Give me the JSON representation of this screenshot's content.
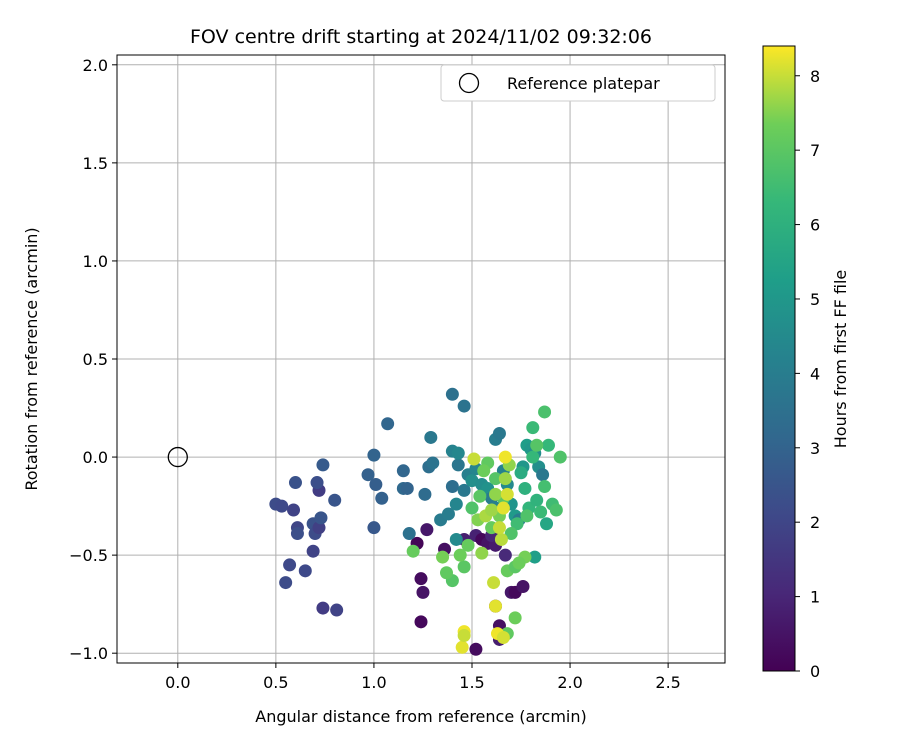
{
  "chart_data": {
    "type": "scatter",
    "title": "FOV centre drift starting at 2024/11/02 09:32:06",
    "xlabel": "Angular distance from reference (arcmin)",
    "ylabel": "Rotation from reference (arcmin)",
    "xlim": [
      -0.31,
      2.79
    ],
    "ylim": [
      -1.05,
      2.05
    ],
    "x_ticks": [
      0.0,
      0.5,
      1.0,
      1.5,
      2.0,
      2.5
    ],
    "x_tick_labels": [
      "0.0",
      "0.5",
      "1.0",
      "1.5",
      "2.0",
      "2.5"
    ],
    "y_ticks": [
      -1.0,
      -0.5,
      0.0,
      0.5,
      1.0,
      1.5,
      2.0
    ],
    "y_tick_labels": [
      "−1.0",
      "−0.5",
      "0.0",
      "0.5",
      "1.0",
      "1.5",
      "2.0"
    ],
    "grid": true,
    "legend": {
      "placement": "upper-right",
      "entries": [
        "Reference platepar"
      ]
    },
    "reference_point": {
      "x": 0.0,
      "y": 0.0,
      "label": "Reference platepar"
    },
    "colorbar": {
      "label": "Hours from first FF file",
      "colormap": "viridis",
      "range": [
        0,
        8.4
      ],
      "ticks": [
        0,
        1,
        2,
        3,
        4,
        5,
        6,
        7,
        8
      ],
      "tick_labels": [
        "0",
        "1",
        "2",
        "3",
        "4",
        "5",
        "6",
        "7",
        "8"
      ]
    },
    "points": [
      [
        1.22,
        -0.44,
        0.1
      ],
      [
        1.24,
        -0.62,
        0.3
      ],
      [
        1.25,
        -0.69,
        0.5
      ],
      [
        1.24,
        -0.84,
        0.2
      ],
      [
        1.27,
        -0.37,
        0.6
      ],
      [
        1.36,
        -0.47,
        0.4
      ],
      [
        1.46,
        -0.42,
        0.8
      ],
      [
        1.52,
        -0.4,
        0.9
      ],
      [
        1.55,
        -0.42,
        0.2
      ],
      [
        1.58,
        -0.44,
        0.5
      ],
      [
        1.62,
        -0.45,
        0.7
      ],
      [
        1.52,
        -0.98,
        0.3
      ],
      [
        1.62,
        -0.76,
        0.9
      ],
      [
        1.64,
        -0.86,
        0.4
      ],
      [
        1.7,
        -0.69,
        0.6
      ],
      [
        1.72,
        -0.69,
        0.2
      ],
      [
        1.76,
        -0.66,
        0.5
      ],
      [
        1.6,
        -0.4,
        1.0
      ],
      [
        1.64,
        -0.93,
        0.8
      ],
      [
        1.67,
        -0.5,
        1.1
      ],
      [
        0.5,
        -0.24,
        2.2
      ],
      [
        0.53,
        -0.25,
        2.1
      ],
      [
        0.59,
        -0.27,
        1.9
      ],
      [
        0.61,
        -0.36,
        2.0
      ],
      [
        0.61,
        -0.39,
        2.3
      ],
      [
        0.57,
        -0.55,
        2.1
      ],
      [
        0.55,
        -0.64,
        2.2
      ],
      [
        0.65,
        -0.58,
        2.1
      ],
      [
        0.69,
        -0.48,
        1.9
      ],
      [
        0.69,
        -0.34,
        2.4
      ],
      [
        0.7,
        -0.39,
        2.2
      ],
      [
        0.72,
        -0.36,
        1.8
      ],
      [
        0.73,
        -0.31,
        2.5
      ],
      [
        0.72,
        -0.17,
        1.7
      ],
      [
        0.71,
        -0.13,
        2.3
      ],
      [
        0.74,
        -0.04,
        2.7
      ],
      [
        0.8,
        -0.22,
        2.5
      ],
      [
        0.74,
        -0.77,
        1.7
      ],
      [
        0.81,
        -0.78,
        1.9
      ],
      [
        0.6,
        -0.13,
        2.4
      ],
      [
        0.97,
        -0.09,
        2.9
      ],
      [
        1.0,
        0.01,
        3.0
      ],
      [
        1.01,
        -0.14,
        2.8
      ],
      [
        1.04,
        -0.21,
        2.9
      ],
      [
        1.0,
        -0.36,
        2.6
      ],
      [
        1.07,
        0.17,
        3.1
      ],
      [
        1.15,
        -0.07,
        3.1
      ],
      [
        1.15,
        -0.16,
        3.2
      ],
      [
        1.17,
        -0.16,
        3.0
      ],
      [
        1.26,
        -0.19,
        3.3
      ],
      [
        1.18,
        -0.39,
        3.5
      ],
      [
        1.28,
        -0.05,
        3.4
      ],
      [
        1.3,
        -0.03,
        3.6
      ],
      [
        1.29,
        0.1,
        3.8
      ],
      [
        1.4,
        0.32,
        3.5
      ],
      [
        1.46,
        0.26,
        3.6
      ],
      [
        1.4,
        -0.15,
        3.4
      ],
      [
        1.43,
        -0.04,
        3.7
      ],
      [
        1.4,
        0.03,
        4.2
      ],
      [
        1.43,
        0.02,
        4.4
      ],
      [
        1.34,
        -0.32,
        3.9
      ],
      [
        1.38,
        -0.29,
        4.0
      ],
      [
        1.42,
        -0.24,
        4.3
      ],
      [
        1.42,
        -0.42,
        4.5
      ],
      [
        1.46,
        -0.17,
        3.8
      ],
      [
        1.48,
        -0.09,
        4.1
      ],
      [
        1.5,
        -0.12,
        4.7
      ],
      [
        1.52,
        -0.06,
        4.3
      ],
      [
        1.55,
        -0.14,
        4.6
      ],
      [
        1.58,
        -0.16,
        4.8
      ],
      [
        1.6,
        -0.21,
        3.9
      ],
      [
        1.62,
        -0.26,
        4.1
      ],
      [
        1.62,
        0.09,
        4.0
      ],
      [
        1.64,
        0.12,
        3.8
      ],
      [
        1.66,
        -0.07,
        4.2
      ],
      [
        1.68,
        -0.14,
        4.5
      ],
      [
        1.7,
        -0.24,
        4.9
      ],
      [
        1.72,
        -0.3,
        5.1
      ],
      [
        1.74,
        -0.32,
        3.9
      ],
      [
        1.76,
        -0.05,
        5.0
      ],
      [
        1.78,
        0.06,
        5.2
      ],
      [
        1.8,
        0.04,
        5.0
      ],
      [
        1.82,
        0.02,
        4.6
      ],
      [
        1.84,
        -0.05,
        4.7
      ],
      [
        1.86,
        -0.09,
        3.8
      ],
      [
        1.82,
        -0.51,
        5.3
      ],
      [
        1.88,
        -0.34,
        5.6
      ],
      [
        1.75,
        -0.08,
        5.8
      ],
      [
        1.77,
        -0.16,
        6.0
      ],
      [
        1.79,
        -0.26,
        6.2
      ],
      [
        1.81,
        0.0,
        6.3
      ],
      [
        1.83,
        -0.22,
        6.1
      ],
      [
        1.85,
        -0.28,
        6.4
      ],
      [
        1.87,
        -0.15,
        6.6
      ],
      [
        1.89,
        0.06,
        6.3
      ],
      [
        1.91,
        -0.24,
        6.5
      ],
      [
        1.93,
        -0.27,
        6.7
      ],
      [
        1.95,
        0.0,
        6.8
      ],
      [
        1.87,
        0.23,
        6.7
      ],
      [
        1.81,
        0.15,
        6.4
      ],
      [
        1.83,
        0.06,
        6.9
      ],
      [
        1.78,
        -0.3,
        6.8
      ],
      [
        1.73,
        -0.34,
        6.5
      ],
      [
        1.7,
        -0.39,
        6.8
      ],
      [
        1.68,
        -0.58,
        7.2
      ],
      [
        1.72,
        -0.56,
        7.0
      ],
      [
        1.72,
        -0.82,
        7.3
      ],
      [
        1.68,
        -0.9,
        7.1
      ],
      [
        1.66,
        -0.21,
        7.0
      ],
      [
        1.64,
        -0.3,
        7.4
      ],
      [
        1.6,
        -0.36,
        7.2
      ],
      [
        1.62,
        -0.11,
        6.9
      ],
      [
        1.58,
        -0.03,
        7.1
      ],
      [
        1.56,
        -0.07,
        7.3
      ],
      [
        1.54,
        -0.2,
        7.0
      ],
      [
        1.5,
        -0.26,
        6.8
      ],
      [
        1.48,
        -0.45,
        7.2
      ],
      [
        1.46,
        -0.56,
        7.0
      ],
      [
        1.44,
        -0.5,
        7.3
      ],
      [
        1.4,
        -0.63,
        6.9
      ],
      [
        1.37,
        -0.59,
        7.1
      ],
      [
        1.35,
        -0.51,
        7.4
      ],
      [
        1.2,
        -0.48,
        7.2
      ],
      [
        1.53,
        -0.32,
        7.5
      ],
      [
        1.55,
        -0.49,
        7.6
      ],
      [
        1.57,
        -0.3,
        7.8
      ],
      [
        1.6,
        -0.27,
        7.7
      ],
      [
        1.62,
        -0.19,
        7.6
      ],
      [
        1.65,
        -0.42,
        7.9
      ],
      [
        1.67,
        -0.11,
        7.7
      ],
      [
        1.69,
        -0.04,
        7.6
      ],
      [
        1.77,
        -0.51,
        7.4
      ],
      [
        1.74,
        -0.54,
        7.3
      ],
      [
        1.61,
        -0.64,
        8.0
      ],
      [
        1.62,
        -0.76,
        8.2
      ],
      [
        1.63,
        -0.9,
        8.3
      ],
      [
        1.66,
        -0.92,
        8.1
      ],
      [
        1.45,
        -0.97,
        8.2
      ],
      [
        1.46,
        -0.89,
        8.3
      ],
      [
        1.46,
        -0.91,
        8.0
      ],
      [
        1.51,
        -0.01,
        8.0
      ],
      [
        1.67,
        0.0,
        8.3
      ],
      [
        1.68,
        -0.19,
        8.1
      ],
      [
        1.66,
        -0.26,
        8.2
      ],
      [
        1.64,
        -0.36,
        8.0
      ]
    ]
  }
}
